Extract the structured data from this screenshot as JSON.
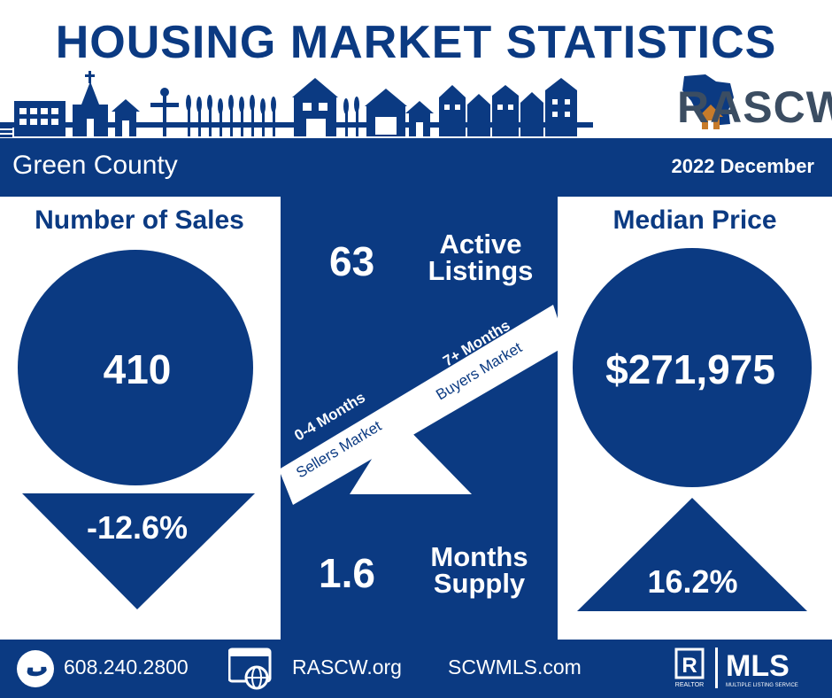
{
  "header": {
    "title": "HOUSING MARKET STATISTICS",
    "brand": "RASCW"
  },
  "band": {
    "county": "Green County",
    "period": "2022 December"
  },
  "sales": {
    "heading": "Number of Sales",
    "value": "410",
    "change": "-12.6%"
  },
  "price": {
    "heading": "Median Price",
    "value": "$271,975",
    "change": "16.2%"
  },
  "listings": {
    "value": "63",
    "label_line1": "Active",
    "label_line2": "Listings"
  },
  "supply": {
    "value": "1.6",
    "label_line1": "Months",
    "label_line2": "Supply"
  },
  "seesaw": {
    "left_months": "0-4 Months",
    "left_market": "Sellers Market",
    "right_months": "7+ Months",
    "right_market": "Buyers Market"
  },
  "footer": {
    "phone": "608.240.2800",
    "site1": "RASCW.org",
    "site2": "SCWMLS.com",
    "realtor_mark": "R",
    "realtor_caption": "REALTOR",
    "mls_name": "MLS",
    "mls_caption": "MULTIPLE LISTING SERVICE"
  },
  "colors": {
    "navy": "#0b3a82",
    "brand_gray": "#3b4d62",
    "house_orange": "#c77b2a",
    "white": "#ffffff"
  },
  "icons": [
    "skyline-icon",
    "wisconsin-house-logo",
    "phone-icon",
    "web-icon",
    "realtor-logo",
    "mls-logo"
  ]
}
